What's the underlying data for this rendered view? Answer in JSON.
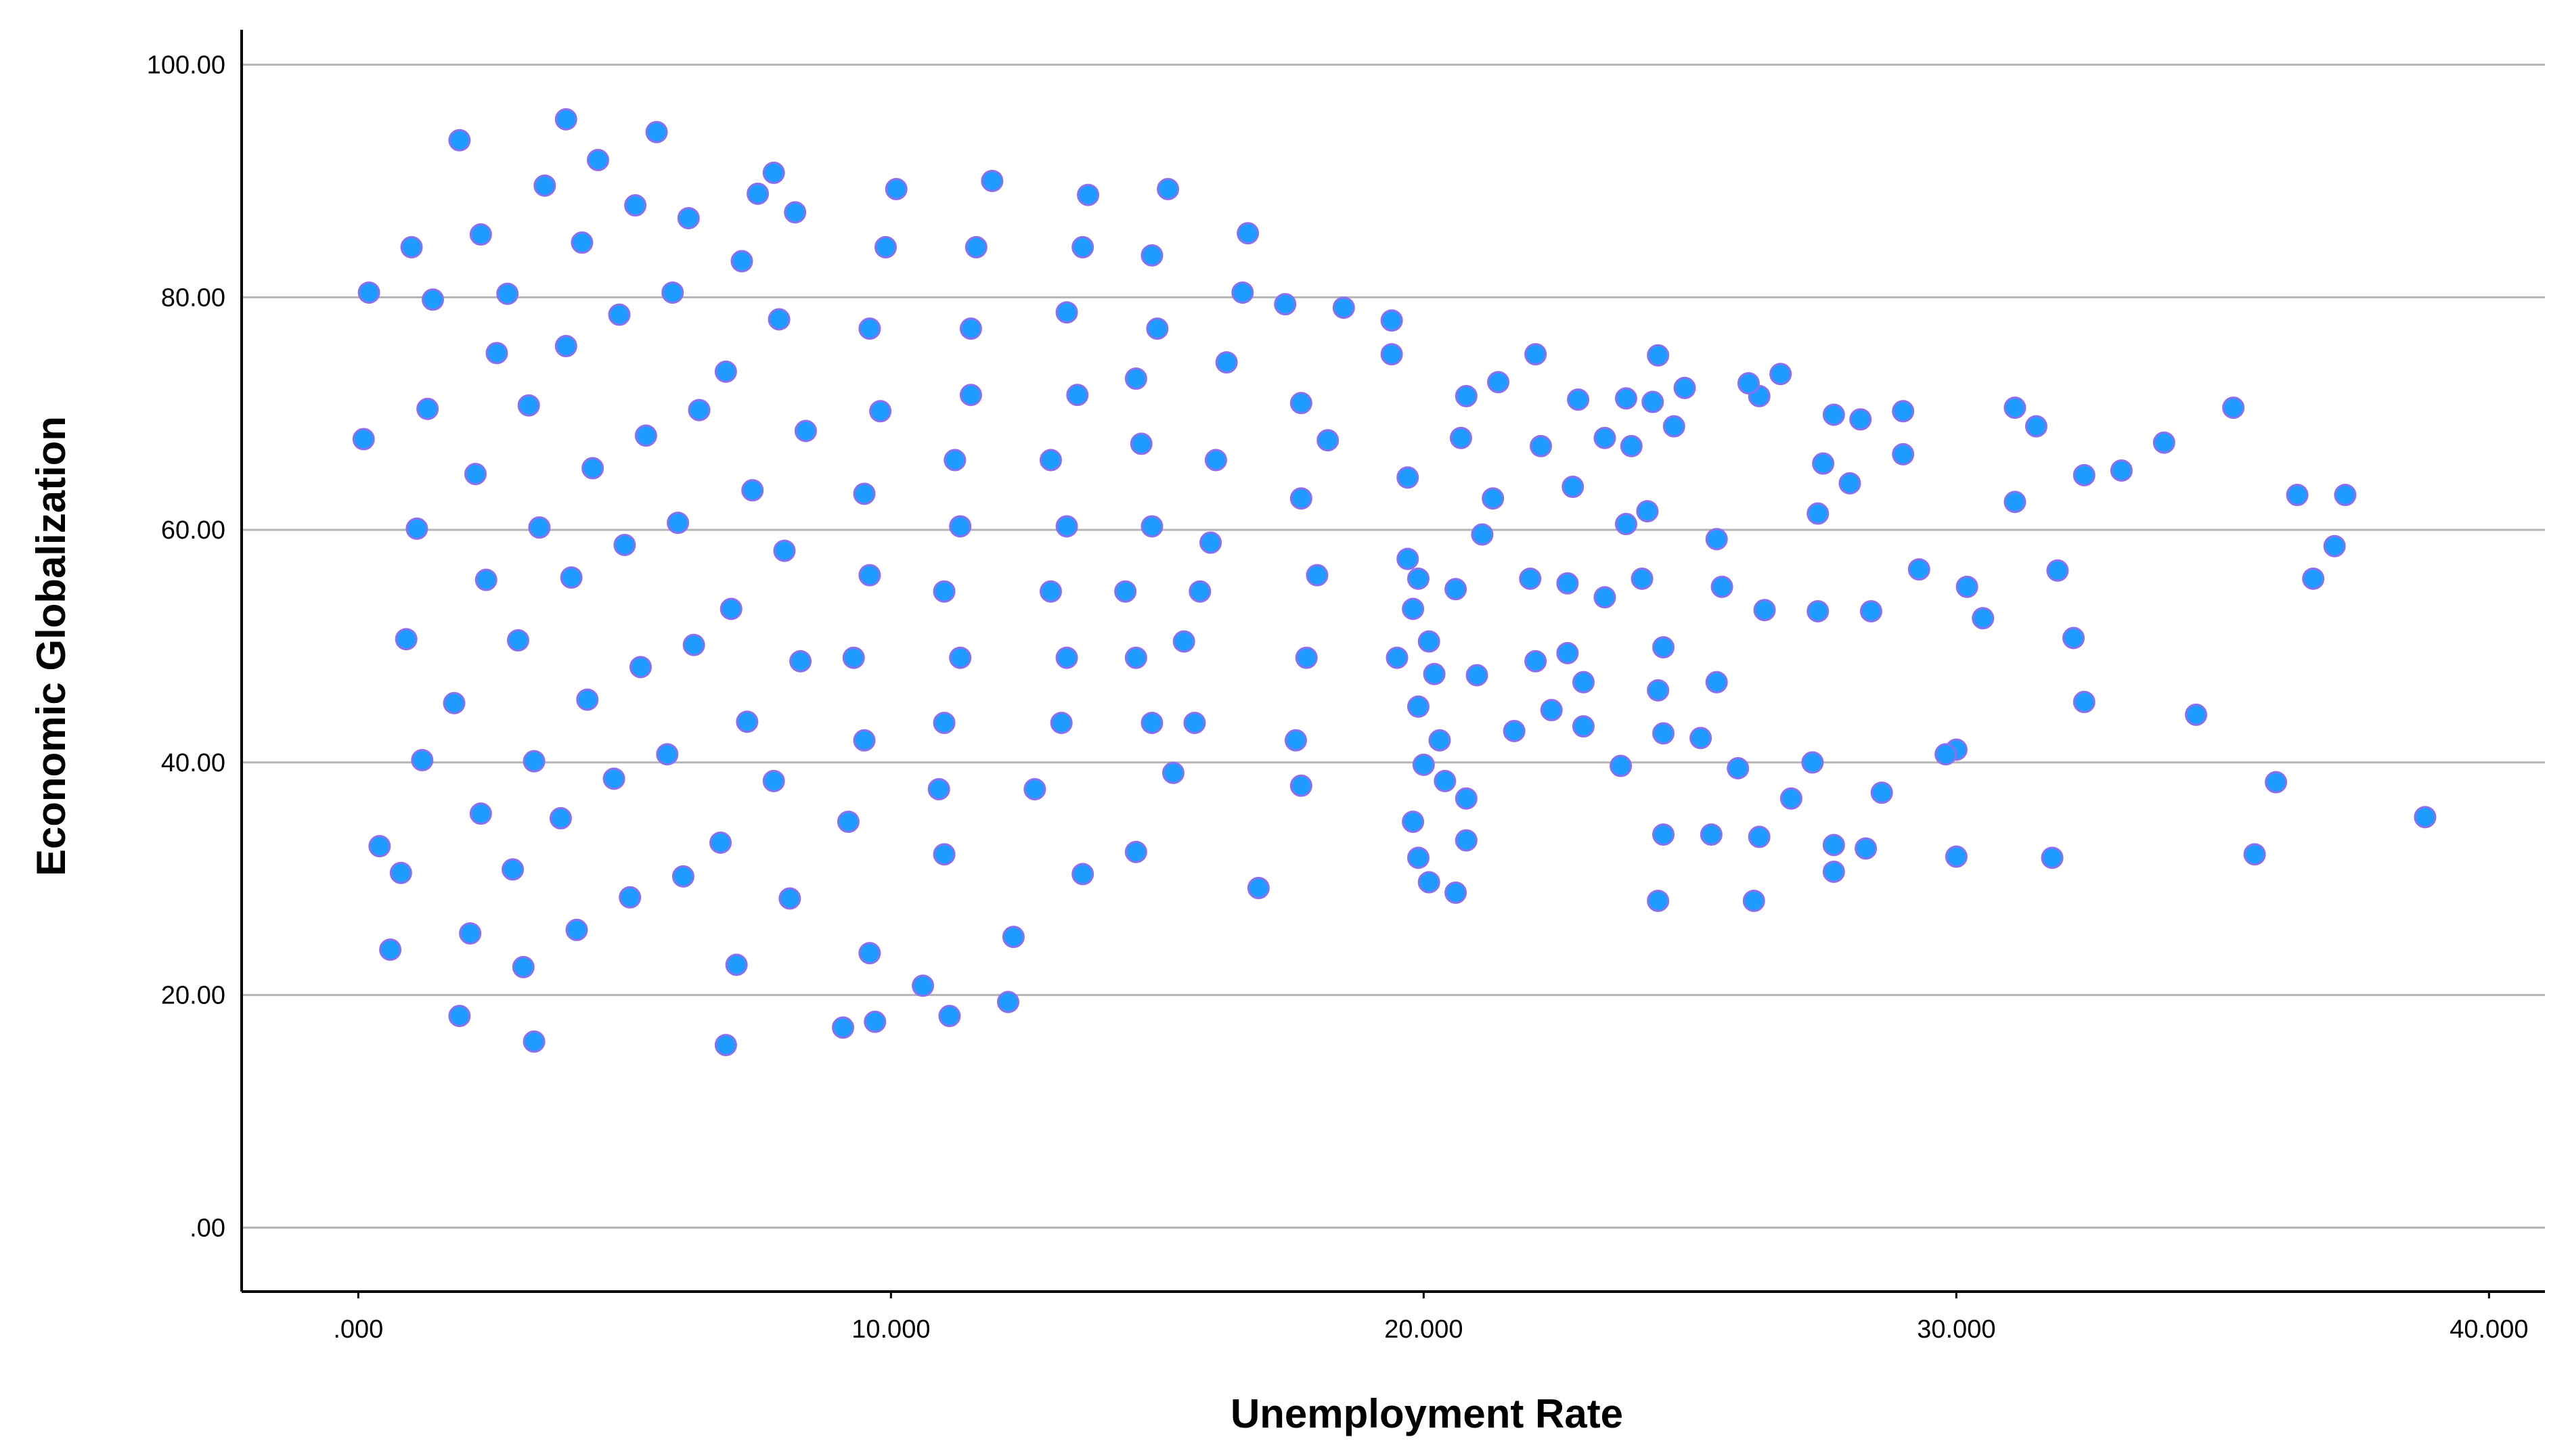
{
  "chart_data": {
    "type": "scatter",
    "x_label": "Unemployment Rate",
    "y_label": "Economic Globalization",
    "color": "#1e9bff",
    "edge_color": "#8c6ff0",
    "grid": true,
    "xlim": [
      -2.19,
      41.05
    ],
    "ylim": [
      -5.5,
      103
    ],
    "xticks": [
      {
        "value": 0,
        "label": ".000"
      },
      {
        "value": 10,
        "label": "10.000"
      },
      {
        "value": 20,
        "label": "20.000"
      },
      {
        "value": 30,
        "label": "30.000"
      },
      {
        "value": 40,
        "label": "40.000"
      }
    ],
    "yticks": [
      {
        "value": 0,
        "label": ".00"
      },
      {
        "value": 20,
        "label": "20.00"
      },
      {
        "value": 40,
        "label": "40.00"
      },
      {
        "value": 60,
        "label": "60.00"
      },
      {
        "value": 80,
        "label": "80.00"
      },
      {
        "value": 100,
        "label": "100.00"
      }
    ],
    "x": [
      38.8,
      36.4,
      37.3,
      37.1,
      36.7,
      36.0,
      35.6,
      35.2,
      34.5,
      33.9,
      33.1,
      32.4,
      32.4,
      32.2,
      31.9,
      31.8,
      31.5,
      31.1,
      31.1,
      30.0,
      30.5,
      30.2,
      30.0,
      29.8,
      29.3,
      29.0,
      29.0,
      28.6,
      28.4,
      28.3,
      28.2,
      27.7,
      27.7,
      27.7,
      28.0,
      27.4,
      27.3,
      27.5,
      27.4,
      26.9,
      26.7,
      26.3,
      26.1,
      26.4,
      26.3,
      26.2,
      25.9,
      25.6,
      25.5,
      25.5,
      25.4,
      25.2,
      24.9,
      24.7,
      24.5,
      24.5,
      24.4,
      24.4,
      24.3,
      24.2,
      24.1,
      24.4,
      24.5,
      23.9,
      23.8,
      23.8,
      23.7,
      23.4,
      23.4,
      23.0,
      22.9,
      23.0,
      22.8,
      22.7,
      22.7,
      22.4,
      22.1,
      22.2,
      22.0,
      22.1,
      21.7,
      21.4,
      21.3,
      21.1,
      21.0,
      20.8,
      20.7,
      20.6,
      20.8,
      20.8,
      20.6,
      19.7,
      19.8,
      19.5,
      19.9,
      20.0,
      19.8,
      19.9,
      20.1,
      19.4,
      19.4,
      19.7,
      19.9,
      20.1,
      20.2,
      20.3,
      20.4,
      18.5,
      18.2,
      17.7,
      17.4,
      17.7,
      18.0,
      17.8,
      17.6,
      17.7,
      16.9,
      16.7,
      16.6,
      16.3,
      16.1,
      16.0,
      15.8,
      15.5,
      15.7,
      15.3,
      15.2,
      14.9,
      15.0,
      14.6,
      14.7,
      14.9,
      14.4,
      14.6,
      14.9,
      14.6,
      13.7,
      13.6,
      13.3,
      13.5,
      13.0,
      13.3,
      13.0,
      13.3,
      13.2,
      12.7,
      13.6,
      12.3,
      12.2,
      11.9,
      11.6,
      11.5,
      11.5,
      11.2,
      11.3,
      11.0,
      11.3,
      11.0,
      10.9,
      11.0,
      11.1,
      10.6,
      10.1,
      9.9,
      9.6,
      9.8,
      9.5,
      9.6,
      9.3,
      9.5,
      9.2,
      9.6,
      9.1,
      9.7,
      6.9,
      3.3,
      1.9,
      0.2,
      0.1,
      0.4,
      0.6,
      1.9,
      3.9,
      5.6,
      7.8,
      1.0,
      0.8,
      1.2,
      0.9,
      1.1,
      1.3,
      1.4,
      2.1,
      2.3,
      1.8,
      2.4,
      2.2,
      2.6,
      2.3,
      3.1,
      2.9,
      3.3,
      3.0,
      3.4,
      3.2,
      2.8,
      3.5,
      4.1,
      3.8,
      4.3,
      4.0,
      4.4,
      3.9,
      4.2,
      4.5,
      5.1,
      4.8,
      5.3,
      5.0,
      5.4,
      4.9,
      5.2,
      6.1,
      5.8,
      6.3,
      6.0,
      6.4,
      5.9,
      6.2,
      7.1,
      6.8,
      7.3,
      7.0,
      7.4,
      6.9,
      7.2,
      7.5,
      8.1,
      7.8,
      8.3,
      8.0,
      8.4,
      7.9,
      8.2
    ],
    "values": [
      35.3,
      63.0,
      63.0,
      58.6,
      55.8,
      38.3,
      32.1,
      70.5,
      44.1,
      67.5,
      65.1,
      64.7,
      45.2,
      50.7,
      56.5,
      31.8,
      68.9,
      70.5,
      62.4,
      31.9,
      52.4,
      55.1,
      41.1,
      40.7,
      56.6,
      70.2,
      66.5,
      37.4,
      53.0,
      32.6,
      69.5,
      32.9,
      30.6,
      69.9,
      64.0,
      53.0,
      40.0,
      65.7,
      61.4,
      36.9,
      73.4,
      71.5,
      72.6,
      53.1,
      33.6,
      28.1,
      39.5,
      55.1,
      59.2,
      46.9,
      33.8,
      42.1,
      72.2,
      68.9,
      49.9,
      33.8,
      28.1,
      75.0,
      71.0,
      61.6,
      55.8,
      46.2,
      42.5,
      67.2,
      71.3,
      60.5,
      39.7,
      67.9,
      54.2,
      46.9,
      71.2,
      43.1,
      63.7,
      55.4,
      49.4,
      44.5,
      75.1,
      67.2,
      55.8,
      48.7,
      42.7,
      72.7,
      62.7,
      59.6,
      47.5,
      71.5,
      67.9,
      54.9,
      36.9,
      33.3,
      28.8,
      57.5,
      53.2,
      49.0,
      44.8,
      39.8,
      34.9,
      31.8,
      29.7,
      78.0,
      75.1,
      64.5,
      55.8,
      50.4,
      47.6,
      41.9,
      38.4,
      79.1,
      67.7,
      70.9,
      79.4,
      62.7,
      56.1,
      49.0,
      41.9,
      38.0,
      29.2,
      85.5,
      80.4,
      74.4,
      66.0,
      58.9,
      54.7,
      50.4,
      43.4,
      39.1,
      89.3,
      83.6,
      77.3,
      73.0,
      67.4,
      60.3,
      54.7,
      49.0,
      43.4,
      32.3,
      88.8,
      84.3,
      78.7,
      71.6,
      66.0,
      60.3,
      54.7,
      49.0,
      43.4,
      37.7,
      30.4,
      25.0,
      19.4,
      90.0,
      84.3,
      77.3,
      71.6,
      66.0,
      60.3,
      54.7,
      49.0,
      43.4,
      37.7,
      32.1,
      18.2,
      20.8,
      89.3,
      84.3,
      77.3,
      70.2,
      63.1,
      56.1,
      49.0,
      41.9,
      34.9,
      23.6,
      17.2,
      17.7,
      15.7,
      16.0,
      18.2,
      80.4,
      67.8,
      32.8,
      23.9,
      93.5,
      95.3,
      94.2,
      90.7,
      84.3,
      30.5,
      40.2,
      50.6,
      60.1,
      70.4,
      79.8,
      25.3,
      35.6,
      45.1,
      55.7,
      64.8,
      75.2,
      85.4,
      22.4,
      30.8,
      40.1,
      50.5,
      60.2,
      70.7,
      80.3,
      89.6,
      25.6,
      35.2,
      45.4,
      55.9,
      65.3,
      75.8,
      84.7,
      91.8,
      28.4,
      38.6,
      48.2,
      58.7,
      68.1,
      78.5,
      87.9,
      30.2,
      40.7,
      50.1,
      60.6,
      70.3,
      80.4,
      86.8,
      22.6,
      33.1,
      43.5,
      53.2,
      63.4,
      73.6,
      83.1,
      88.9,
      28.3,
      38.4,
      48.7,
      58.2,
      68.5,
      78.1,
      87.3
    ]
  }
}
